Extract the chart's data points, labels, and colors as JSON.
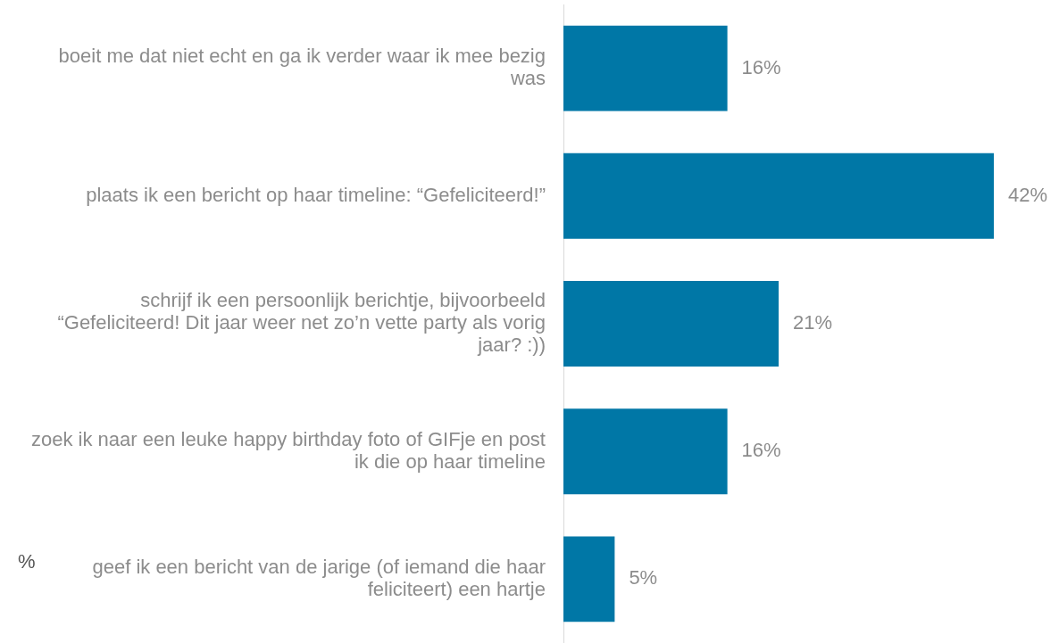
{
  "chart_data": {
    "type": "bar",
    "orientation": "horizontal",
    "categories": [
      "boeit me dat niet echt en ga ik verder waar ik mee bezig was",
      "plaats ik een bericht op haar timeline: “Gefeliciteerd!”",
      "schrijf ik een persoonlijk berichtje, bijvoorbeeld “Gefeliciteerd! Dit jaar weer net zo’n vette party als vorig jaar? :))",
      "zoek ik naar een leuke happy birthday foto of GIFje en post ik die op haar timeline",
      "geef ik een bericht van de jarige (of iemand die haar feliciteert) een hartje"
    ],
    "values": [
      16,
      42,
      21,
      16,
      5
    ],
    "value_labels": [
      "16%",
      "42%",
      "21%",
      "16%",
      "5%"
    ],
    "color": "#0077a6",
    "tick_labels": "y",
    "grid": false,
    "legend": false,
    "annotations": [
      "%"
    ]
  }
}
